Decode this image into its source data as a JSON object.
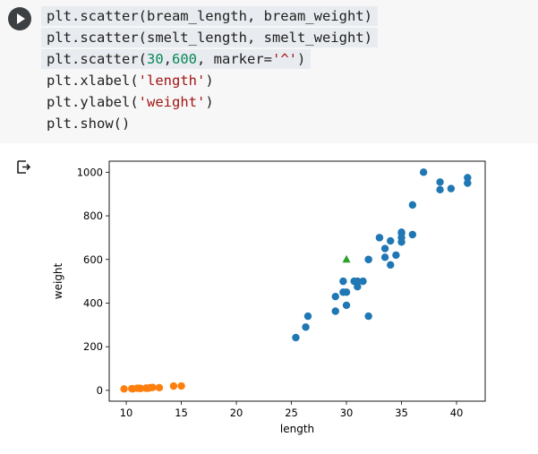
{
  "cell": {
    "code_lines": [
      [
        {
          "t": "plt.scatter(bream_length, bream_weight)",
          "c": ""
        }
      ],
      [
        {
          "t": "plt.scatter(smelt_length, smelt_weight)",
          "c": ""
        }
      ],
      [
        {
          "t": "plt.scatter(",
          "c": ""
        },
        {
          "t": "30",
          "c": "num"
        },
        {
          "t": ",",
          "c": ""
        },
        {
          "t": "600",
          "c": "num"
        },
        {
          "t": ", marker=",
          "c": ""
        },
        {
          "t": "'^'",
          "c": "str"
        },
        {
          "t": ")",
          "c": ""
        }
      ],
      [
        {
          "t": "plt.xlabel(",
          "c": ""
        },
        {
          "t": "'length'",
          "c": "str"
        },
        {
          "t": ")",
          "c": ""
        }
      ],
      [
        {
          "t": "plt.ylabel(",
          "c": ""
        },
        {
          "t": "'weight'",
          "c": "str"
        },
        {
          "t": ")",
          "c": ""
        }
      ],
      [
        {
          "t": "plt.show()",
          "c": ""
        }
      ]
    ],
    "selected_lines": [
      0,
      1,
      2
    ]
  },
  "icons": {
    "run": "play-icon",
    "output": "output-arrow-icon"
  },
  "chart_data": {
    "type": "scatter",
    "xlabel": "length",
    "ylabel": "weight",
    "xlim": [
      8.45,
      42.6
    ],
    "ylim": [
      -49.6,
      1050.6
    ],
    "xticks": [
      10,
      15,
      20,
      25,
      30,
      35,
      40
    ],
    "yticks": [
      0,
      200,
      400,
      600,
      800,
      1000
    ],
    "grid": false,
    "series": [
      {
        "color": "#1f77b4",
        "marker": "o",
        "x": [
          25.4,
          26.3,
          26.5,
          29.0,
          29.0,
          29.7,
          29.7,
          30.0,
          30.0,
          30.7,
          31.0,
          31.0,
          31.5,
          32.0,
          32.0,
          32.0,
          33.0,
          33.0,
          33.5,
          33.5,
          34.0,
          34.0,
          34.5,
          35.0,
          35.0,
          35.0,
          35.0,
          36.0,
          36.0,
          37.0,
          38.5,
          38.5,
          39.5,
          41.0,
          41.0
        ],
        "y": [
          242,
          290,
          340,
          363,
          430,
          450,
          500,
          390,
          450,
          500,
          475,
          500,
          500,
          340,
          600,
          600,
          700,
          700,
          610,
          650,
          575,
          685,
          620,
          680,
          700,
          725,
          720,
          714,
          850,
          1000,
          920,
          955,
          925,
          975,
          950
        ]
      },
      {
        "color": "#ff7f0e",
        "marker": "o",
        "x": [
          9.8,
          10.5,
          10.6,
          11.0,
          11.2,
          11.3,
          11.8,
          11.8,
          12.0,
          12.2,
          12.4,
          13.0,
          14.3,
          15.0
        ],
        "y": [
          6.7,
          7.5,
          7.0,
          9.7,
          9.8,
          8.7,
          10.0,
          9.9,
          9.8,
          12.2,
          13.4,
          12.2,
          19.7,
          19.9
        ]
      },
      {
        "color": "#2ca02c",
        "marker": "^",
        "x": [
          30
        ],
        "y": [
          600
        ]
      }
    ]
  }
}
